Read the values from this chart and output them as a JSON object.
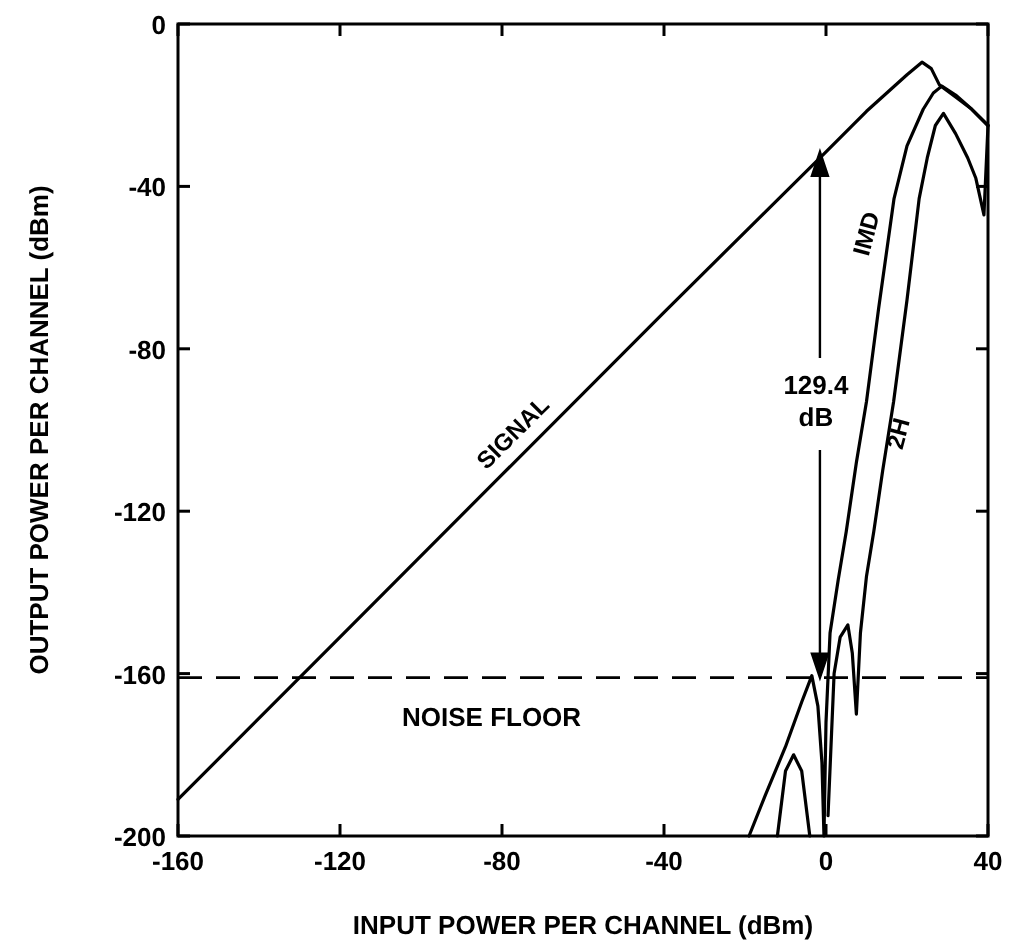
{
  "chart_data": {
    "type": "line",
    "xlabel": "INPUT POWER PER CHANNEL (dBm)",
    "ylabel": "OUTPUT POWER PER CHANNEL (dBm)",
    "xlim": [
      -160,
      40
    ],
    "ylim": [
      -200,
      0
    ],
    "xticks": [
      -160,
      -120,
      -80,
      -40,
      0,
      40
    ],
    "yticks": [
      0,
      -40,
      -80,
      -120,
      -160,
      -200
    ],
    "grid": false,
    "marker": "none",
    "line_style": "solid",
    "series": [
      {
        "name": "SIGNAL",
        "color": "#000000",
        "x": [
          -160,
          -120,
          -80,
          -40,
          0,
          10,
          20,
          23.7,
          26,
          28,
          32,
          36,
          40
        ],
        "values": [
          -191,
          -151,
          -111,
          -71,
          -31.5,
          -21.5,
          -12.5,
          -9.4,
          -11,
          -15,
          -18,
          -21,
          -25
        ]
      },
      {
        "name": "IMD",
        "color": "#000000",
        "x": [
          -19,
          -15,
          -10,
          -6,
          -3.5,
          -2,
          -1,
          -0.5,
          0,
          1,
          3,
          5,
          7.5,
          10,
          13,
          16.8,
          20,
          24,
          26.5,
          28.6,
          32,
          36,
          40
        ],
        "values": [
          -200,
          -190,
          -178,
          -167,
          -160.5,
          -168,
          -182,
          -200,
          -172,
          -150,
          -137,
          -125,
          -108,
          -93,
          -70,
          -43,
          -30,
          -21,
          -17,
          -15.3,
          -17.5,
          -21,
          -25
        ]
      },
      {
        "name": "2H",
        "color": "#000000",
        "x": [
          -12,
          -10,
          -8,
          -6,
          -4,
          -1,
          0.5,
          2,
          3.5,
          5.4,
          6.5,
          7.5,
          8.5,
          10,
          11.8,
          14,
          16.7,
          20,
          23,
          25,
          27,
          29,
          32,
          35,
          37,
          39,
          40
        ],
        "values": [
          -200,
          -184,
          -180,
          -184,
          -200,
          null,
          -195,
          -160,
          -151,
          -148,
          -155,
          -170,
          -150,
          -136,
          -125,
          -110,
          -93,
          -68,
          -43,
          -33,
          -25,
          -22,
          -27,
          -33,
          -38,
          -47,
          -25
        ]
      }
    ],
    "ref_lines": [
      {
        "axis": "y",
        "value": -161,
        "label": "NOISE FLOOR",
        "line_style": "dashed",
        "color": "#000000"
      }
    ],
    "annotations": [
      {
        "text": "129.4 dB",
        "x": -1.5,
        "y": -161
      }
    ]
  }
}
